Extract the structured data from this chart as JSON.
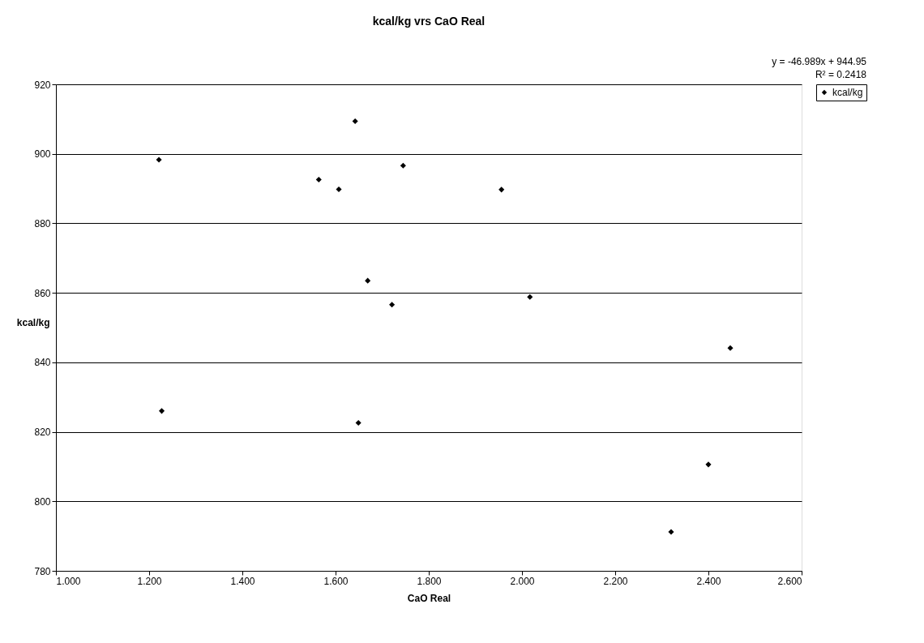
{
  "chart_data": {
    "type": "scatter",
    "title": "kcal/kg vrs CaO Real",
    "xlabel": "CaO Real",
    "ylabel": "kcal/kg",
    "x": [
      1.221,
      1.227,
      1.564,
      1.607,
      1.642,
      1.649,
      1.669,
      1.721,
      1.745,
      1.956,
      2.017,
      2.32,
      2.4,
      2.447
    ],
    "series": [
      {
        "name": "kcal/kg",
        "color": "#000000",
        "values": [
          898.3,
          826,
          892.6,
          889.8,
          909.4,
          822.6,
          863.5,
          856.6,
          896.6,
          889.7,
          858.8,
          791.2,
          810.6,
          844.1
        ]
      }
    ],
    "xlim": [
      1.0,
      2.6
    ],
    "xticks": [
      {
        "value": 1.0,
        "label": "1.000"
      },
      {
        "value": 1.2,
        "label": "1.200"
      },
      {
        "value": 1.4,
        "label": "1.400"
      },
      {
        "value": 1.6,
        "label": "1.600"
      },
      {
        "value": 1.8,
        "label": "1.800"
      },
      {
        "value": 2.0,
        "label": "2.000"
      },
      {
        "value": 2.2,
        "label": "2.200"
      },
      {
        "value": 2.4,
        "label": "2.400"
      },
      {
        "value": 2.6,
        "label": "2.600"
      }
    ],
    "ylim": [
      780,
      920
    ],
    "yticks": [
      780,
      800,
      820,
      840,
      860,
      880,
      900,
      920
    ],
    "annotations": [
      "y = -46.989x + 944.95",
      "R² = 0.2418"
    ],
    "grid": "y",
    "legend": "right",
    "marker": "diamond"
  }
}
